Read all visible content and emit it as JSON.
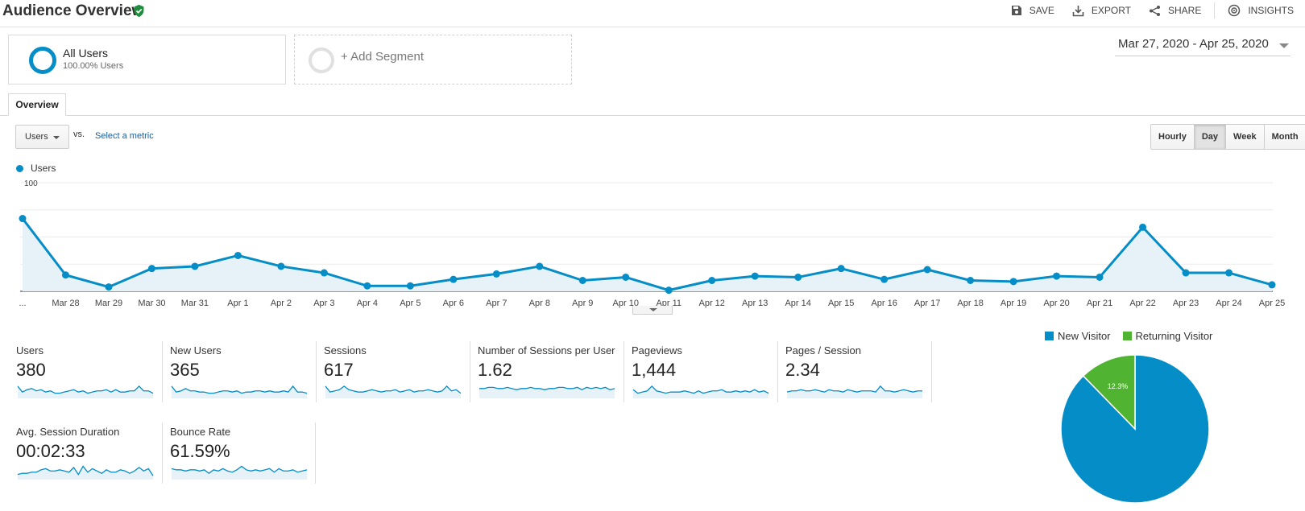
{
  "header": {
    "title": "Audience Overview",
    "actions": {
      "save": "SAVE",
      "export": "EXPORT",
      "share": "SHARE",
      "insights": "INSIGHTS"
    }
  },
  "segments": {
    "all_users": {
      "name": "All Users",
      "sub": "100.00% Users"
    },
    "add": "+ Add Segment"
  },
  "date_range": "Mar 27, 2020 - Apr 25, 2020",
  "tabs": [
    "Overview"
  ],
  "metric_selector": {
    "selected": "Users",
    "vs": "vs.",
    "select_metric": "Select a metric"
  },
  "granularity": {
    "options": [
      "Hourly",
      "Day",
      "Week",
      "Month"
    ],
    "selected": "Day"
  },
  "chart_data": {
    "type": "area",
    "series": [
      {
        "name": "Users",
        "color": "#058dc7",
        "values": [
          67,
          15,
          4,
          21,
          23,
          33,
          23,
          17,
          5,
          5,
          11,
          16,
          23,
          10,
          13,
          1,
          10,
          14,
          13,
          21,
          11,
          20,
          10,
          9,
          14,
          13,
          59,
          17,
          17,
          6
        ]
      }
    ],
    "x_labels": [
      "...",
      "Mar 28",
      "Mar 29",
      "Mar 30",
      "Mar 31",
      "Apr 1",
      "Apr 2",
      "Apr 3",
      "Apr 4",
      "Apr 5",
      "Apr 6",
      "Apr 7",
      "Apr 8",
      "Apr 9",
      "Apr 10",
      "Apr 11",
      "Apr 12",
      "Apr 13",
      "Apr 14",
      "Apr 15",
      "Apr 16",
      "Apr 17",
      "Apr 18",
      "Apr 19",
      "Apr 20",
      "Apr 21",
      "Apr 22",
      "Apr 23",
      "Apr 24",
      "Apr 25"
    ],
    "y_ticks": [
      100,
      50
    ],
    "ylim": [
      0,
      100
    ],
    "grid": true,
    "legend_position": "top-left"
  },
  "metrics": [
    {
      "label": "Users",
      "value": "380",
      "spark": [
        9,
        4,
        6,
        7,
        5,
        6,
        4,
        5,
        3,
        3,
        4,
        5,
        6,
        4,
        5,
        3,
        4,
        5,
        5,
        6,
        4,
        6,
        4,
        4,
        5,
        5,
        9,
        5,
        5,
        3
      ]
    },
    {
      "label": "New Users",
      "value": "365",
      "spark": [
        9,
        4,
        5,
        7,
        5,
        5,
        4,
        4,
        3,
        3,
        4,
        5,
        5,
        4,
        5,
        3,
        4,
        4,
        5,
        5,
        4,
        5,
        4,
        4,
        5,
        4,
        9,
        4,
        4,
        3
      ]
    },
    {
      "label": "Sessions",
      "value": "617",
      "spark": [
        9,
        4,
        5,
        6,
        9,
        6,
        5,
        4,
        4,
        5,
        6,
        5,
        4,
        5,
        5,
        6,
        4,
        5,
        6,
        4,
        5,
        5,
        6,
        5,
        4,
        5,
        9,
        5,
        6,
        3
      ]
    },
    {
      "label": "Number of Sessions per User",
      "value": "1.62",
      "spark": [
        7,
        7,
        8,
        8,
        7,
        7,
        8,
        7,
        6,
        7,
        7,
        8,
        7,
        7,
        6,
        7,
        7,
        8,
        8,
        7,
        7,
        8,
        6,
        8,
        7,
        8,
        7,
        8,
        6,
        7
      ]
    },
    {
      "label": "Pageviews",
      "value": "1,444",
      "spark": [
        6,
        3,
        4,
        5,
        9,
        5,
        4,
        3,
        4,
        4,
        4,
        5,
        4,
        3,
        5,
        3,
        4,
        5,
        5,
        6,
        4,
        4,
        5,
        4,
        5,
        4,
        6,
        4,
        5,
        3
      ]
    },
    {
      "label": "Pages / Session",
      "value": "2.34",
      "spark": [
        4,
        5,
        5,
        6,
        5,
        5,
        6,
        5,
        4,
        6,
        5,
        5,
        4,
        6,
        5,
        4,
        5,
        5,
        5,
        4,
        9,
        5,
        5,
        4,
        5,
        6,
        5,
        4,
        5,
        5
      ]
    },
    {
      "label": "Avg. Session Duration",
      "value": "00:02:33",
      "spark": [
        3,
        4,
        4,
        5,
        5,
        7,
        8,
        6,
        6,
        7,
        6,
        5,
        9,
        3,
        10,
        5,
        8,
        6,
        4,
        7,
        5,
        5,
        7,
        6,
        4,
        6,
        9,
        6,
        8,
        2
      ]
    },
    {
      "label": "Bounce Rate",
      "value": "61.59%",
      "spark": [
        8,
        7,
        7,
        6,
        7,
        7,
        6,
        7,
        4,
        7,
        6,
        8,
        6,
        5,
        7,
        10,
        7,
        6,
        7,
        6,
        7,
        8,
        5,
        8,
        6,
        6,
        7,
        5,
        6,
        7
      ]
    }
  ],
  "pie": {
    "legend": [
      {
        "label": "New Visitor",
        "color": "#058dc7"
      },
      {
        "label": "Returning Visitor",
        "color": "#50b432"
      }
    ],
    "slices": [
      {
        "label": "New Visitor",
        "value": 87.7,
        "text": "87.7%",
        "color": "#058dc7"
      },
      {
        "label": "Returning Visitor",
        "value": 12.3,
        "text": "12.3%",
        "color": "#50b432"
      }
    ]
  }
}
